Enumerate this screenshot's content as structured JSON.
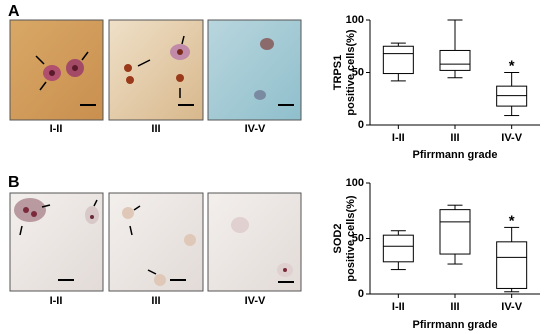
{
  "panels": [
    {
      "label": "A",
      "images": [
        "I-II",
        "III",
        "IV-V"
      ]
    },
    {
      "label": "B",
      "images": [
        "I-II",
        "III",
        "IV-V"
      ]
    }
  ],
  "chart_data": [
    {
      "type": "box",
      "ylabel": [
        "TRPS1",
        "positive cells(%)"
      ],
      "xlabel": "Pfirrmann grade",
      "categories": [
        "I-II",
        "III",
        "IV-V"
      ],
      "boxes": [
        {
          "min": 42,
          "q1": 49,
          "median": 68,
          "q3": 75,
          "max": 78
        },
        {
          "min": 45,
          "q1": 52,
          "median": 58,
          "q3": 71,
          "max": 100
        },
        {
          "min": 9,
          "q1": 18,
          "median": 28,
          "q3": 37,
          "max": 50
        }
      ],
      "annotation": {
        "category": "IV-V",
        "text": "*"
      },
      "ylim": [
        0,
        100
      ],
      "yticks": [
        0,
        50,
        100
      ],
      "color": "#000000"
    },
    {
      "type": "box",
      "ylabel": [
        "SOD2",
        "positive cells(%)"
      ],
      "xlabel": "Pfirrmann grade",
      "categories": [
        "I-II",
        "III",
        "IV-V"
      ],
      "boxes": [
        {
          "min": 22,
          "q1": 29,
          "median": 43,
          "q3": 53,
          "max": 57
        },
        {
          "min": 27,
          "q1": 36,
          "median": 65,
          "q3": 76,
          "max": 80
        },
        {
          "min": 2,
          "q1": 5,
          "median": 33,
          "q3": 47,
          "max": 60
        }
      ],
      "annotation": {
        "category": "IV-V",
        "text": "*"
      },
      "ylim": [
        0,
        100
      ],
      "yticks": [
        0,
        50,
        100
      ],
      "color": "#000000"
    }
  ]
}
